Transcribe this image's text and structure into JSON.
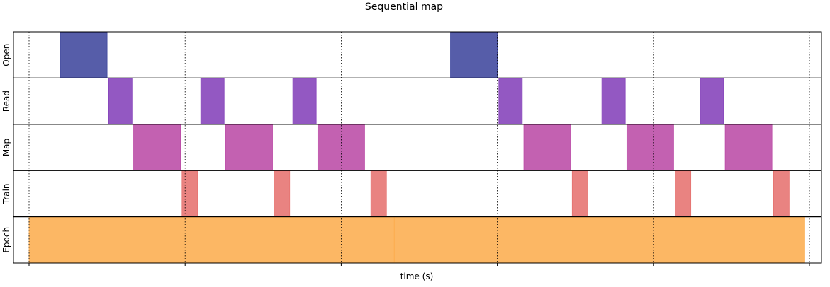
{
  "chart_data": {
    "type": "timeline",
    "title": "Sequential map",
    "xlabel": "time (s)",
    "ylabel": "",
    "xlim": [
      0,
      5.1
    ],
    "x_ticks": [
      0,
      1,
      2,
      3,
      4,
      5
    ],
    "grid": "vertical dotted lines at x ticks",
    "lanes": [
      "Open",
      "Read",
      "Map",
      "Train",
      "Epoch"
    ],
    "colors": {
      "Open": "#3f479d",
      "Read": "#8441b9",
      "Map": "#bb4ba6",
      "Train": "#e6726f",
      "Epoch": "#fcad4f"
    },
    "series": [
      {
        "lane": "Open",
        "intervals": [
          [
            0.2,
            0.5
          ],
          [
            2.7,
            3.0
          ]
        ]
      },
      {
        "lane": "Read",
        "intervals": [
          [
            0.51,
            0.66
          ],
          [
            1.1,
            1.25
          ],
          [
            1.69,
            1.84
          ],
          [
            3.01,
            3.16
          ],
          [
            3.67,
            3.82
          ],
          [
            4.3,
            4.45
          ]
        ]
      },
      {
        "lane": "Map",
        "intervals": [
          [
            0.67,
            0.97
          ],
          [
            1.26,
            1.56
          ],
          [
            1.85,
            2.15
          ],
          [
            3.17,
            3.47
          ],
          [
            3.83,
            4.13
          ],
          [
            4.46,
            4.76
          ]
        ]
      },
      {
        "lane": "Train",
        "intervals": [
          [
            0.98,
            1.08
          ],
          [
            1.57,
            1.67
          ],
          [
            2.19,
            2.29
          ],
          [
            3.48,
            3.58
          ],
          [
            4.14,
            4.24
          ],
          [
            4.77,
            4.87
          ]
        ]
      },
      {
        "lane": "Epoch",
        "intervals": [
          [
            0.0,
            2.34
          ],
          [
            2.34,
            4.97
          ]
        ]
      }
    ]
  }
}
